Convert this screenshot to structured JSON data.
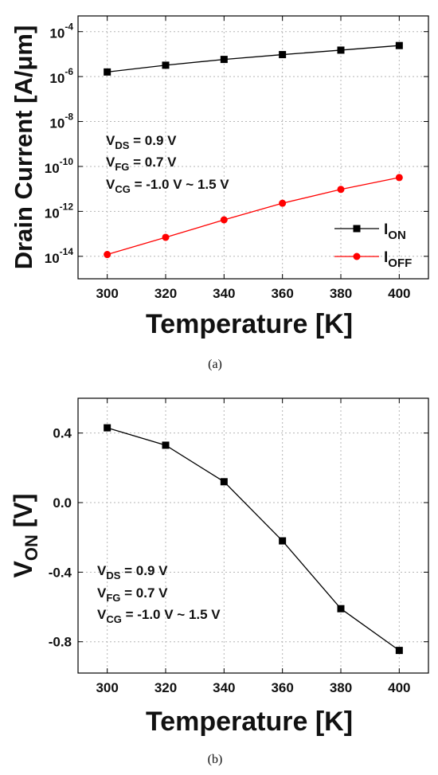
{
  "chart_data": [
    {
      "type": "line",
      "panel_label": "(a)",
      "xlabel": "Temperature [K]",
      "ylabel": "Drain Current [A/μm]",
      "x": [
        300,
        320,
        340,
        360,
        380,
        400
      ],
      "xlim": [
        290,
        410
      ],
      "xticks": [
        "300",
        "320",
        "340",
        "360",
        "380",
        "400"
      ],
      "yscale": "log",
      "ylim": [
        1e-15,
        0.0005
      ],
      "yticks": [
        {
          "value": 0.0001,
          "base": "10",
          "exp": "-4"
        },
        {
          "value": 1e-06,
          "base": "10",
          "exp": "-6"
        },
        {
          "value": 1e-08,
          "base": "10",
          "exp": "-8"
        },
        {
          "value": 1e-10,
          "base": "10",
          "exp": "-10"
        },
        {
          "value": 1e-12,
          "base": "10",
          "exp": "-12"
        },
        {
          "value": 1e-14,
          "base": "10",
          "exp": "-14"
        }
      ],
      "grid": true,
      "legend_position": "bottom-right",
      "series": [
        {
          "name": "I",
          "name_sub": "ON",
          "values": [
            1.6e-06,
            3.2e-06,
            5.8e-06,
            9.5e-06,
            1.5e-05,
            2.4e-05
          ],
          "color": "#000000",
          "marker": "square"
        },
        {
          "name": "I",
          "name_sub": "OFF",
          "values": [
            1.2e-14,
            7e-14,
            4.2e-13,
            2.3e-12,
            9.5e-12,
            3.2e-11
          ],
          "color": "#ff0000",
          "marker": "circle"
        }
      ],
      "annotations": [
        {
          "main": "V",
          "sub": "DS",
          "rest": " = 0.9 V"
        },
        {
          "main": "V",
          "sub": "FG",
          "rest": " = 0.7 V"
        },
        {
          "main": "V",
          "sub": "CG",
          "rest": " = -1.0 V ~ 1.5 V"
        }
      ]
    },
    {
      "type": "line",
      "panel_label": "(b)",
      "xlabel": "Temperature [K]",
      "ylabel": "V",
      "ylabel_sub": "ON",
      "ylabel_rest": " [V]",
      "x": [
        300,
        320,
        340,
        360,
        380,
        400
      ],
      "xlim": [
        290,
        410
      ],
      "xticks": [
        "300",
        "320",
        "340",
        "360",
        "380",
        "400"
      ],
      "yscale": "linear",
      "ylim": [
        -0.98,
        0.6
      ],
      "yticks": [
        {
          "value": 0.4,
          "label": "0.4"
        },
        {
          "value": 0.0,
          "label": "0.0"
        },
        {
          "value": -0.4,
          "label": "-0.4"
        },
        {
          "value": -0.8,
          "label": "-0.8"
        }
      ],
      "grid": true,
      "series": [
        {
          "values": [
            0.43,
            0.33,
            0.12,
            -0.22,
            -0.61,
            -0.85
          ],
          "color": "#000000",
          "marker": "square"
        }
      ],
      "annotations": [
        {
          "main": "V",
          "sub": "DS",
          "rest": " = 0.9 V"
        },
        {
          "main": "V",
          "sub": "FG",
          "rest": " = 0.7 V"
        },
        {
          "main": "V",
          "sub": "CG",
          "rest": " = -1.0 V ~ 1.5 V"
        }
      ]
    }
  ]
}
